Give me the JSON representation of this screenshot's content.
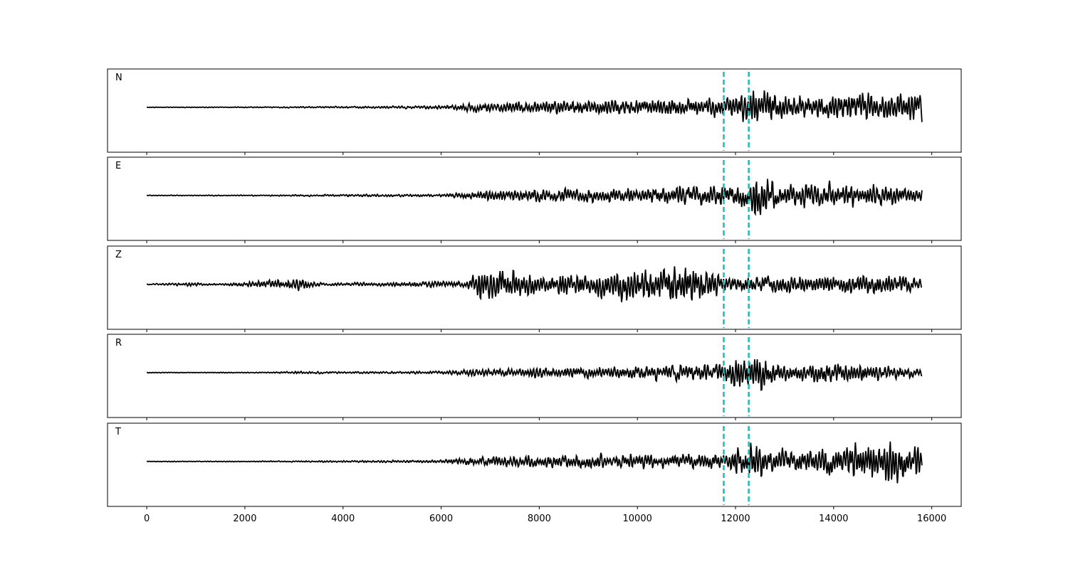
{
  "chart_data": {
    "type": "line",
    "xlim": [
      -800,
      16600
    ],
    "x_ticks": [
      0,
      2000,
      4000,
      6000,
      8000,
      10000,
      12000,
      14000,
      16000
    ],
    "x_tick_labels": [
      "0",
      "2000",
      "4000",
      "6000",
      "8000",
      "10000",
      "12000",
      "14000",
      "16000"
    ],
    "x_range": [
      0,
      15800
    ],
    "grid": false,
    "line_color": "#000000",
    "marker_color": "#1abeb5",
    "markers": [
      11760,
      12270
    ],
    "panels": [
      {
        "label": "N",
        "envelope": [
          [
            0,
            0.015
          ],
          [
            2000,
            0.02
          ],
          [
            4000,
            0.04
          ],
          [
            6000,
            0.07
          ],
          [
            6600,
            0.2
          ],
          [
            8000,
            0.28
          ],
          [
            10000,
            0.33
          ],
          [
            11800,
            0.4
          ],
          [
            12300,
            0.95
          ],
          [
            13000,
            0.5
          ],
          [
            14000,
            0.55
          ],
          [
            15000,
            0.6
          ],
          [
            15800,
            0.65
          ]
        ],
        "seed": 11
      },
      {
        "label": "E",
        "envelope": [
          [
            0,
            0.015
          ],
          [
            2000,
            0.02
          ],
          [
            4000,
            0.05
          ],
          [
            6000,
            0.06
          ],
          [
            6600,
            0.18
          ],
          [
            8000,
            0.3
          ],
          [
            10000,
            0.32
          ],
          [
            11000,
            0.45
          ],
          [
            12200,
            0.5
          ],
          [
            12400,
            1.0
          ],
          [
            13000,
            0.45
          ],
          [
            14000,
            0.5
          ],
          [
            15800,
            0.35
          ]
        ],
        "seed": 23
      },
      {
        "label": "Z",
        "envelope": [
          [
            0,
            0.02
          ],
          [
            900,
            0.08
          ],
          [
            1500,
            0.03
          ],
          [
            3100,
            0.25
          ],
          [
            3600,
            0.06
          ],
          [
            5000,
            0.1
          ],
          [
            6500,
            0.15
          ],
          [
            6800,
            0.85
          ],
          [
            8000,
            0.45
          ],
          [
            9500,
            0.6
          ],
          [
            11000,
            0.95
          ],
          [
            11800,
            0.35
          ],
          [
            13000,
            0.35
          ],
          [
            15000,
            0.45
          ],
          [
            15800,
            0.25
          ]
        ],
        "seed": 37
      },
      {
        "label": "R",
        "envelope": [
          [
            0,
            0.015
          ],
          [
            2500,
            0.02
          ],
          [
            3000,
            0.06
          ],
          [
            4000,
            0.04
          ],
          [
            6000,
            0.06
          ],
          [
            6600,
            0.15
          ],
          [
            8000,
            0.22
          ],
          [
            10000,
            0.3
          ],
          [
            11800,
            0.4
          ],
          [
            12300,
            0.9
          ],
          [
            12500,
            0.95
          ],
          [
            13000,
            0.35
          ],
          [
            14000,
            0.45
          ],
          [
            15800,
            0.2
          ]
        ],
        "seed": 53
      },
      {
        "label": "T",
        "envelope": [
          [
            0,
            0.015
          ],
          [
            2000,
            0.02
          ],
          [
            4000,
            0.04
          ],
          [
            6000,
            0.07
          ],
          [
            6600,
            0.2
          ],
          [
            8000,
            0.25
          ],
          [
            10000,
            0.3
          ],
          [
            11800,
            0.35
          ],
          [
            12300,
            0.85
          ],
          [
            13000,
            0.45
          ],
          [
            14000,
            0.6
          ],
          [
            15200,
            0.95
          ],
          [
            15800,
            0.6
          ]
        ],
        "seed": 71
      }
    ]
  }
}
